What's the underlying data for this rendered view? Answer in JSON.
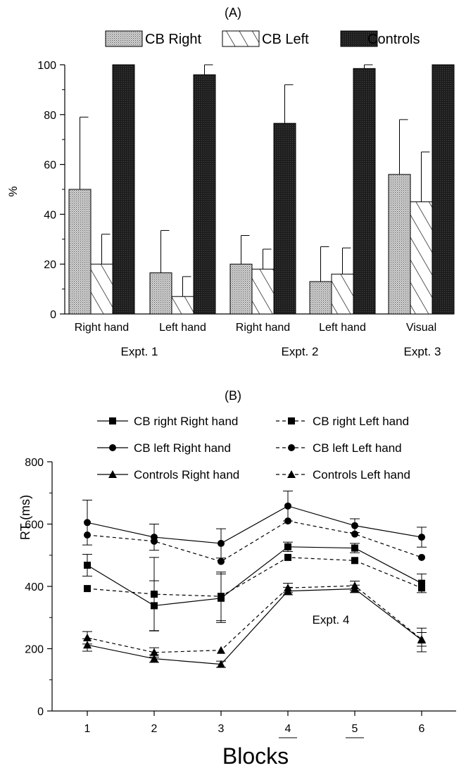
{
  "chart_data": [
    {
      "type": "bar",
      "panel_label": "(A)",
      "ylabel": "%",
      "ylim": [
        0,
        100
      ],
      "yticks": [
        "0",
        "20",
        "40",
        "60",
        "80",
        "100"
      ],
      "categories": [
        "Right hand",
        "Left hand",
        "Right hand",
        "Left hand",
        "Visual"
      ],
      "groups": [
        {
          "label": "Expt. 1",
          "categories": [
            0,
            1
          ]
        },
        {
          "label": "Expt. 2",
          "categories": [
            2,
            3
          ]
        },
        {
          "label": "Expt. 3",
          "categories": [
            4
          ]
        }
      ],
      "legend_position": "top",
      "series": [
        {
          "name": "CB Right",
          "pattern": "dotted",
          "values": [
            50,
            16.5,
            20,
            13,
            56
          ],
          "error": [
            29,
            17,
            11.5,
            14,
            22
          ]
        },
        {
          "name": "CB Left",
          "pattern": "hatched",
          "values": [
            20,
            7,
            18,
            16,
            45
          ],
          "error": [
            12,
            8,
            8,
            10.5,
            20
          ]
        },
        {
          "name": "Controls",
          "pattern": "solid-dark",
          "values": [
            100,
            96,
            76.5,
            98.5,
            100
          ],
          "error": [
            0,
            4,
            15.5,
            1.5,
            0
          ]
        }
      ]
    },
    {
      "type": "line",
      "panel_label": "(B)",
      "xlabel": "Blocks",
      "ylabel": "RT (ms)",
      "ylim": [
        0,
        800
      ],
      "yticks": [
        "0",
        "200",
        "400",
        "600",
        "800"
      ],
      "x": [
        1,
        2,
        3,
        4,
        5,
        6
      ],
      "xtick_labels": [
        "1",
        "2",
        "3",
        "4",
        "5",
        "6"
      ],
      "underlined_ticks": [
        4,
        5
      ],
      "annotation": "Expt. 4",
      "legend_position": "top",
      "series": [
        {
          "name": "CB right Right hand",
          "marker": "square",
          "dash": "solid",
          "values": [
            468,
            338,
            362,
            527,
            523,
            410
          ],
          "error": [
            35,
            80,
            78,
            15,
            15,
            30
          ]
        },
        {
          "name": "CB right Left hand",
          "marker": "square",
          "dash": "dashed",
          "values": [
            393,
            375,
            368,
            493,
            483,
            395
          ],
          "error": [
            0,
            118,
            78,
            0,
            0,
            0
          ]
        },
        {
          "name": "CB left Right hand",
          "marker": "circle",
          "dash": "solid",
          "values": [
            605,
            558,
            538,
            658,
            595,
            558
          ],
          "error": [
            72,
            42,
            47,
            48,
            22,
            32
          ]
        },
        {
          "name": "CB left Left hand",
          "marker": "circle",
          "dash": "dashed",
          "values": [
            565,
            545,
            480,
            610,
            568,
            493
          ],
          "error": [
            0,
            0,
            0,
            0,
            0,
            0
          ]
        },
        {
          "name": "Controls Right hand",
          "marker": "triangle",
          "dash": "solid",
          "values": [
            212,
            168,
            150,
            385,
            392,
            228
          ],
          "error": [
            20,
            12,
            10,
            12,
            12,
            38
          ]
        },
        {
          "name": "Controls Left hand",
          "marker": "triangle",
          "dash": "dashed",
          "values": [
            235,
            188,
            195,
            395,
            402,
            230
          ],
          "error": [
            20,
            15,
            0,
            15,
            15,
            22
          ]
        }
      ]
    }
  ]
}
